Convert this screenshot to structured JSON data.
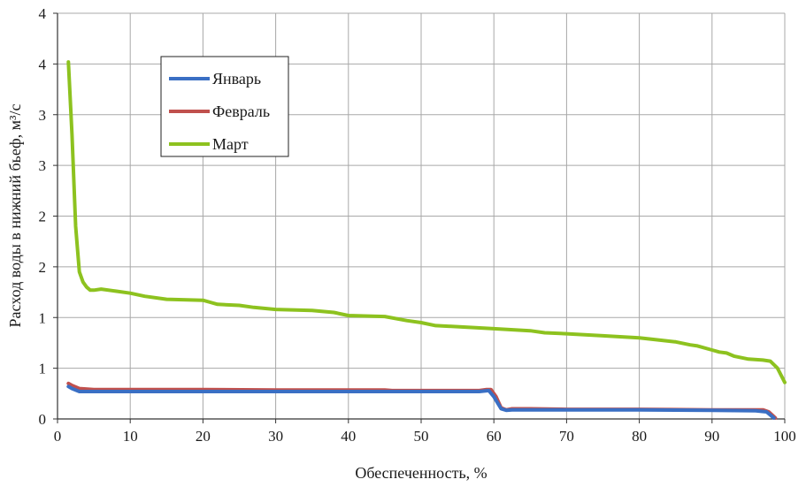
{
  "chart_data": {
    "type": "line",
    "title": "",
    "xlabel": "Обеспеченность, %",
    "ylabel": "Расход воды в нижний бьеф, м³/с",
    "xlim": [
      0,
      100
    ],
    "ylim": [
      0,
      4
    ],
    "grid": true,
    "legend_position": "top-left",
    "x_ticks": [
      "0",
      "10",
      "20",
      "30",
      "40",
      "50",
      "60",
      "70",
      "80",
      "90",
      "100"
    ],
    "y_ticks": [
      "0",
      "1",
      "1",
      "2",
      "2",
      "3",
      "3",
      "4",
      "4"
    ],
    "series": [
      {
        "name": "Январь",
        "color": "#3a6fc4",
        "x": [
          1.5,
          2.0,
          3.0,
          5.0,
          10,
          20,
          30,
          40,
          45,
          50,
          55,
          58,
          59.3,
          60,
          61,
          61.7,
          62.5,
          65,
          70,
          80,
          90,
          96,
          97.5,
          98.5
        ],
        "y": [
          0.32,
          0.3,
          0.27,
          0.27,
          0.27,
          0.27,
          0.27,
          0.27,
          0.27,
          0.27,
          0.27,
          0.27,
          0.28,
          0.22,
          0.1,
          0.085,
          0.09,
          0.09,
          0.09,
          0.09,
          0.085,
          0.08,
          0.07,
          0.01
        ]
      },
      {
        "name": "Февраль",
        "color": "#c0504d",
        "x": [
          1.5,
          2.0,
          3.0,
          5.0,
          10,
          20,
          30,
          40,
          45,
          46,
          50,
          55,
          58,
          59,
          59.6,
          60.3,
          61,
          61.7,
          62.5,
          65,
          70,
          80,
          90,
          96,
          97,
          97.8,
          98.7
        ],
        "y": [
          0.35,
          0.33,
          0.3,
          0.29,
          0.29,
          0.29,
          0.285,
          0.285,
          0.285,
          0.28,
          0.28,
          0.28,
          0.28,
          0.29,
          0.29,
          0.22,
          0.11,
          0.09,
          0.1,
          0.1,
          0.095,
          0.095,
          0.09,
          0.09,
          0.09,
          0.07,
          0.01
        ]
      },
      {
        "name": "Март",
        "color": "#8dc21f",
        "x": [
          1.5,
          2.0,
          2.5,
          3.0,
          3.5,
          4.0,
          4.5,
          5.0,
          6.0,
          8.0,
          10,
          12,
          15,
          20,
          21,
          22,
          25,
          27,
          30,
          35,
          38,
          40,
          45,
          48,
          50,
          52,
          55,
          60,
          65,
          67,
          70,
          75,
          80,
          85,
          87,
          88,
          90,
          91,
          92,
          93,
          95,
          97,
          98,
          99,
          100
        ],
        "y": [
          3.52,
          2.8,
          1.9,
          1.45,
          1.35,
          1.3,
          1.27,
          1.27,
          1.28,
          1.26,
          1.24,
          1.21,
          1.18,
          1.17,
          1.15,
          1.13,
          1.12,
          1.1,
          1.08,
          1.07,
          1.05,
          1.02,
          1.01,
          0.97,
          0.95,
          0.92,
          0.91,
          0.89,
          0.87,
          0.85,
          0.84,
          0.82,
          0.8,
          0.76,
          0.73,
          0.72,
          0.68,
          0.66,
          0.65,
          0.62,
          0.59,
          0.58,
          0.57,
          0.5,
          0.36
        ]
      }
    ]
  }
}
